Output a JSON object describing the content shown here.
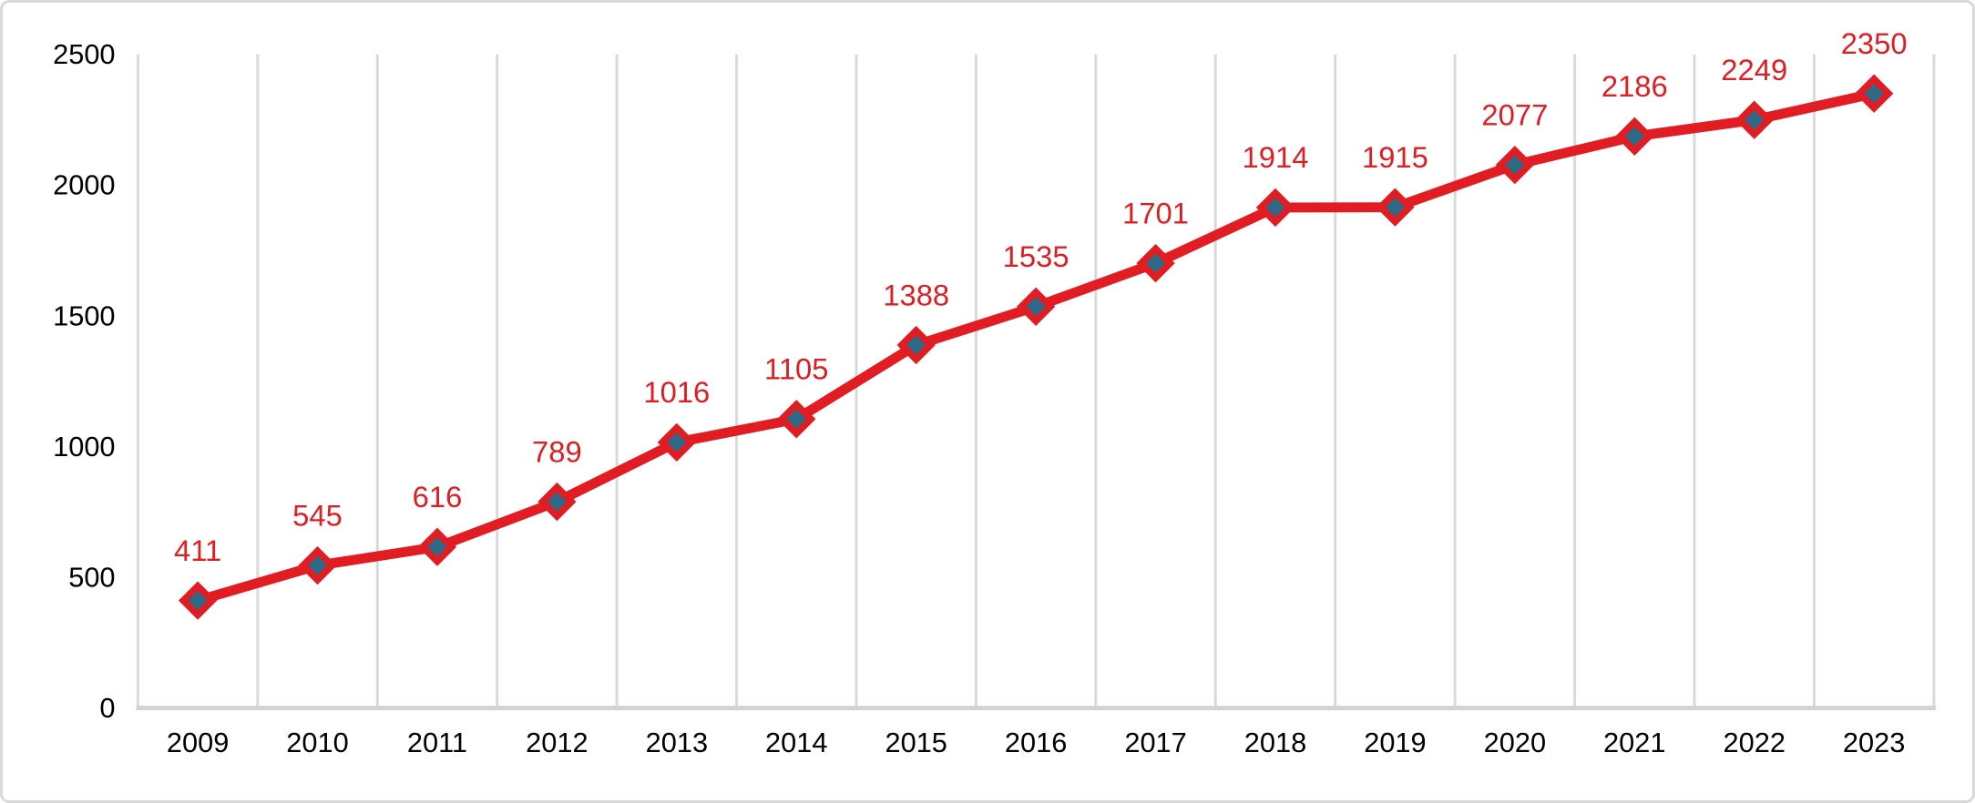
{
  "window": {
    "background": "#FFFFFF",
    "border_color": "#D9D9D9"
  },
  "chart_data": {
    "type": "line",
    "title": "",
    "xlabel": "",
    "ylabel": "",
    "categories": [
      "2009",
      "2010",
      "2011",
      "2012",
      "2013",
      "2014",
      "2015",
      "2016",
      "2017",
      "2018",
      "2019",
      "2020",
      "2021",
      "2022",
      "2023"
    ],
    "series": [
      {
        "name": "annual-count",
        "values": [
          411,
          545,
          616,
          789,
          1016,
          1105,
          1388,
          1535,
          1701,
          1914,
          1915,
          2077,
          2186,
          2249,
          2350
        ]
      }
    ],
    "data_labels": [
      "411",
      "545",
      "616",
      "789",
      "1016",
      "1105",
      "1388",
      "1535",
      "1701",
      "1914",
      "1915",
      "2077",
      "2186",
      "2249",
      "2350"
    ],
    "ylim": [
      0,
      2500
    ],
    "y_ticks": [
      "0",
      "500",
      "1000",
      "1500",
      "2000",
      "2500"
    ],
    "grid": "vertical-only",
    "legend_position": "none",
    "marker_shape": "diamond",
    "colors": {
      "line": "#E11C22",
      "data_label": "#DF1E23",
      "marker_fill": "#2E6A87",
      "marker_stroke": "#E11C22",
      "gridline": "#D9D9D9",
      "axis_line": "#D2D2D2",
      "tick_label": "#000000"
    }
  }
}
